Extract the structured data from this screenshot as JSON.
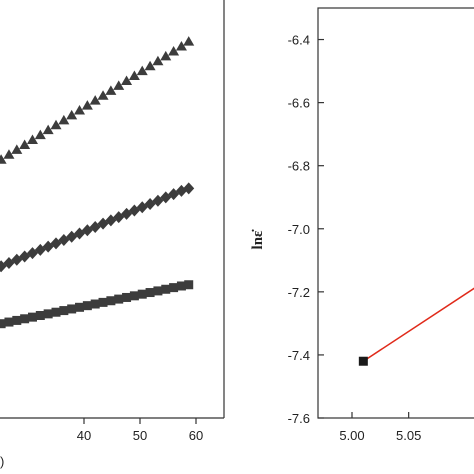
{
  "chart_data": [
    {
      "type": "scatter",
      "title": "",
      "xlabel": "",
      "ylabel": "",
      "xlim": [
        25,
        65
      ],
      "ylim": [
        0,
        10
      ],
      "x_ticks": [
        "40",
        "50",
        "60"
      ],
      "cut_off_label": ")",
      "grid": false,
      "series": [
        {
          "marker": "triangle",
          "color": "#3c3c3c",
          "x": [
            25.2,
            26.6,
            28.0,
            29.4,
            30.8,
            32.2,
            33.6,
            35.0,
            36.4,
            37.8,
            39.2,
            40.6,
            42.0,
            43.4,
            44.8,
            46.2,
            47.6,
            49.0,
            50.4,
            51.8,
            53.2,
            54.6,
            56.0,
            57.4,
            58.7
          ],
          "y": [
            6.3,
            6.42,
            6.54,
            6.66,
            6.78,
            6.9,
            7.02,
            7.14,
            7.26,
            7.38,
            7.5,
            7.62,
            7.74,
            7.86,
            7.98,
            8.1,
            8.22,
            8.34,
            8.46,
            8.58,
            8.7,
            8.82,
            8.94,
            9.06,
            9.18
          ]
        },
        {
          "marker": "diamond",
          "color": "#3c3c3c",
          "x": [
            25.2,
            26.6,
            28.0,
            29.4,
            30.8,
            32.2,
            33.6,
            35.0,
            36.4,
            37.8,
            39.2,
            40.6,
            42.0,
            43.4,
            44.8,
            46.2,
            47.6,
            49.0,
            50.4,
            51.8,
            53.2,
            54.6,
            56.0,
            57.4,
            58.7
          ],
          "y": [
            3.7,
            3.78,
            3.86,
            3.94,
            4.02,
            4.1,
            4.18,
            4.26,
            4.34,
            4.42,
            4.5,
            4.58,
            4.66,
            4.74,
            4.82,
            4.9,
            4.98,
            5.06,
            5.14,
            5.22,
            5.3,
            5.38,
            5.46,
            5.54,
            5.6
          ]
        },
        {
          "marker": "square",
          "color": "#3c3c3c",
          "x": [
            25.2,
            26.6,
            28.0,
            29.4,
            30.8,
            32.2,
            33.6,
            35.0,
            36.4,
            37.8,
            39.2,
            40.6,
            42.0,
            43.4,
            44.8,
            46.2,
            47.6,
            49.0,
            50.4,
            51.8,
            53.2,
            54.6,
            56.0,
            57.4,
            58.7
          ],
          "y": [
            2.3,
            2.34,
            2.38,
            2.42,
            2.46,
            2.5,
            2.54,
            2.58,
            2.62,
            2.66,
            2.7,
            2.74,
            2.78,
            2.82,
            2.86,
            2.9,
            2.94,
            2.98,
            3.02,
            3.06,
            3.1,
            3.14,
            3.18,
            3.22,
            3.25
          ]
        }
      ]
    },
    {
      "type": "scatter",
      "title": "",
      "xlabel": "",
      "ylabel": "lnε̇",
      "xlim": [
        4.97,
        5.12
      ],
      "ylim": [
        -7.6,
        -6.3
      ],
      "x_ticks": [
        "5.00",
        "5.05"
      ],
      "y_ticks": [
        "-6.4",
        "-6.6",
        "-6.8",
        "-7.0",
        "-7.2",
        "-7.4",
        "-7.6"
      ],
      "grid": false,
      "points": {
        "marker": "square",
        "color": "#1a1a1a",
        "x": [
          5.01
        ],
        "y": [
          -7.42
        ]
      },
      "fit_line": {
        "color": "#e02a1a",
        "x": [
          5.01,
          5.12
        ],
        "y": [
          -7.42,
          -7.16
        ]
      }
    }
  ]
}
